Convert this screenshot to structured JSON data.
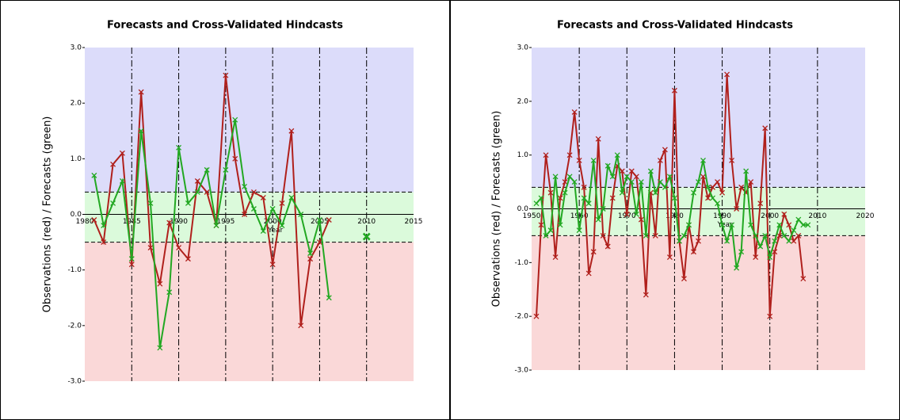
{
  "chart_data": [
    {
      "type": "line",
      "title": "Forecasts and Cross-Validated Hindcasts",
      "x_label": "Year",
      "y_label": "Observations (red) / Forecasts (green)",
      "x": [
        1981,
        1982,
        1983,
        1984,
        1985,
        1986,
        1987,
        1988,
        1989,
        1990,
        1991,
        1992,
        1993,
        1994,
        1995,
        1996,
        1997,
        1998,
        1999,
        2000,
        2001,
        2002,
        2003,
        2004,
        2005,
        2006,
        2007,
        2008,
        2009,
        2010
      ],
      "series": [
        {
          "name": "Observations",
          "color": "#b0201c",
          "values": [
            -0.1,
            -0.5,
            0.9,
            1.1,
            -0.9,
            2.2,
            -0.6,
            -1.25,
            -0.15,
            -0.6,
            -0.8,
            0.6,
            0.4,
            -0.2,
            2.5,
            1.0,
            0.0,
            0.4,
            0.3,
            -0.9,
            0.2,
            1.5,
            -2.0,
            -0.8,
            -0.5,
            -0.1,
            null,
            null,
            null,
            null
          ]
        },
        {
          "name": "Forecasts",
          "color": "#22a822",
          "values": [
            0.7,
            -0.2,
            0.2,
            0.6,
            -0.8,
            1.5,
            0.2,
            -2.4,
            -1.4,
            1.2,
            0.2,
            0.4,
            0.8,
            -0.2,
            0.8,
            1.7,
            0.5,
            0.1,
            -0.3,
            0.1,
            -0.2,
            0.3,
            0.0,
            -0.7,
            -0.1,
            -1.5,
            null,
            null,
            null,
            -0.4
          ]
        }
      ],
      "xlim": [
        1980,
        2015
      ],
      "xticks": [
        1980,
        1985,
        1990,
        1995,
        2000,
        2005,
        2010,
        2015
      ],
      "ylim": [
        -3,
        3
      ],
      "yticks": [
        {
          "value": 3,
          "label": "3.0"
        },
        {
          "value": 2,
          "label": "2.0"
        },
        {
          "value": 1,
          "label": "1.0"
        },
        {
          "value": 0,
          "label": "0.0"
        },
        {
          "value": -1,
          "label": "-1.0"
        },
        {
          "value": -2,
          "label": "-2.0"
        },
        {
          "value": -3,
          "label": "-3.0"
        }
      ],
      "thresholds": [
        -0.5,
        0.4
      ],
      "band_colors": [
        "#fad8d8",
        "#dbfadb",
        "#dcdcfa"
      ]
    },
    {
      "type": "line",
      "title": "Forecasts and Cross-Validated Hindcasts",
      "x_label": "Year",
      "y_label": "Observations (red) / Forecasts (green)",
      "x": [
        1951,
        1952,
        1953,
        1954,
        1955,
        1956,
        1957,
        1958,
        1959,
        1960,
        1961,
        1962,
        1963,
        1964,
        1965,
        1966,
        1967,
        1968,
        1969,
        1970,
        1971,
        1972,
        1973,
        1974,
        1975,
        1976,
        1977,
        1978,
        1979,
        1980,
        1981,
        1982,
        1983,
        1984,
        1985,
        1986,
        1987,
        1988,
        1989,
        1990,
        1991,
        1992,
        1993,
        1994,
        1995,
        1996,
        1997,
        1998,
        1999,
        2000,
        2001,
        2002,
        2003,
        2004,
        2005,
        2006,
        2007,
        2008
      ],
      "series": [
        {
          "name": "Observations",
          "color": "#b0201c",
          "values": [
            -2.0,
            -0.3,
            1.0,
            0.3,
            -0.9,
            0.2,
            0.5,
            1.0,
            1.8,
            0.9,
            0.4,
            -1.2,
            -0.8,
            1.3,
            -0.5,
            -0.7,
            0.2,
            0.8,
            0.7,
            -0.1,
            0.7,
            0.6,
            -0.2,
            -1.6,
            0.3,
            -0.5,
            0.9,
            1.1,
            -0.9,
            2.2,
            -0.6,
            -1.3,
            -0.3,
            -0.8,
            -0.6,
            0.6,
            0.2,
            0.4,
            0.5,
            0.3,
            2.5,
            0.9,
            0.0,
            0.4,
            0.3,
            0.5,
            -0.9,
            0.1,
            1.5,
            -2.0,
            -0.8,
            -0.5,
            -0.1,
            -0.3,
            -0.6,
            -0.5,
            -1.3,
            null
          ]
        },
        {
          "name": "Forecasts",
          "color": "#22a822",
          "values": [
            0.1,
            0.2,
            -0.5,
            -0.4,
            0.6,
            -0.3,
            0.3,
            0.6,
            0.5,
            -0.4,
            0.2,
            0.1,
            0.9,
            -0.2,
            0.0,
            0.8,
            0.6,
            1.0,
            0.3,
            0.6,
            0.5,
            -0.1,
            0.5,
            -0.5,
            0.7,
            0.3,
            0.5,
            0.4,
            0.6,
            0.2,
            -0.6,
            -0.5,
            -0.3,
            0.3,
            0.5,
            0.9,
            0.4,
            0.2,
            0.1,
            -0.3,
            -0.6,
            -0.3,
            -1.1,
            -0.8,
            0.7,
            -0.3,
            -0.5,
            -0.7,
            -0.5,
            -0.9,
            -0.6,
            -0.3,
            -0.5,
            -0.6,
            -0.4,
            -0.2,
            -0.3,
            -0.3
          ]
        }
      ],
      "xlim": [
        1950,
        2020
      ],
      "xticks": [
        1950,
        1960,
        1970,
        1980,
        1990,
        2000,
        2010,
        2020
      ],
      "ylim": [
        -3,
        3
      ],
      "yticks": [
        {
          "value": 3,
          "label": "3.0"
        },
        {
          "value": 2,
          "label": "2.0"
        },
        {
          "value": 1,
          "label": "1.0"
        },
        {
          "value": 0,
          "label": "0.0"
        },
        {
          "value": -1,
          "label": "-1.0"
        },
        {
          "value": -2,
          "label": "-2.0"
        },
        {
          "value": -3,
          "label": "-3.0"
        }
      ],
      "thresholds": [
        -0.5,
        0.4
      ],
      "band_colors": [
        "#fad8d8",
        "#dbfadb",
        "#dcdcfa"
      ]
    }
  ]
}
